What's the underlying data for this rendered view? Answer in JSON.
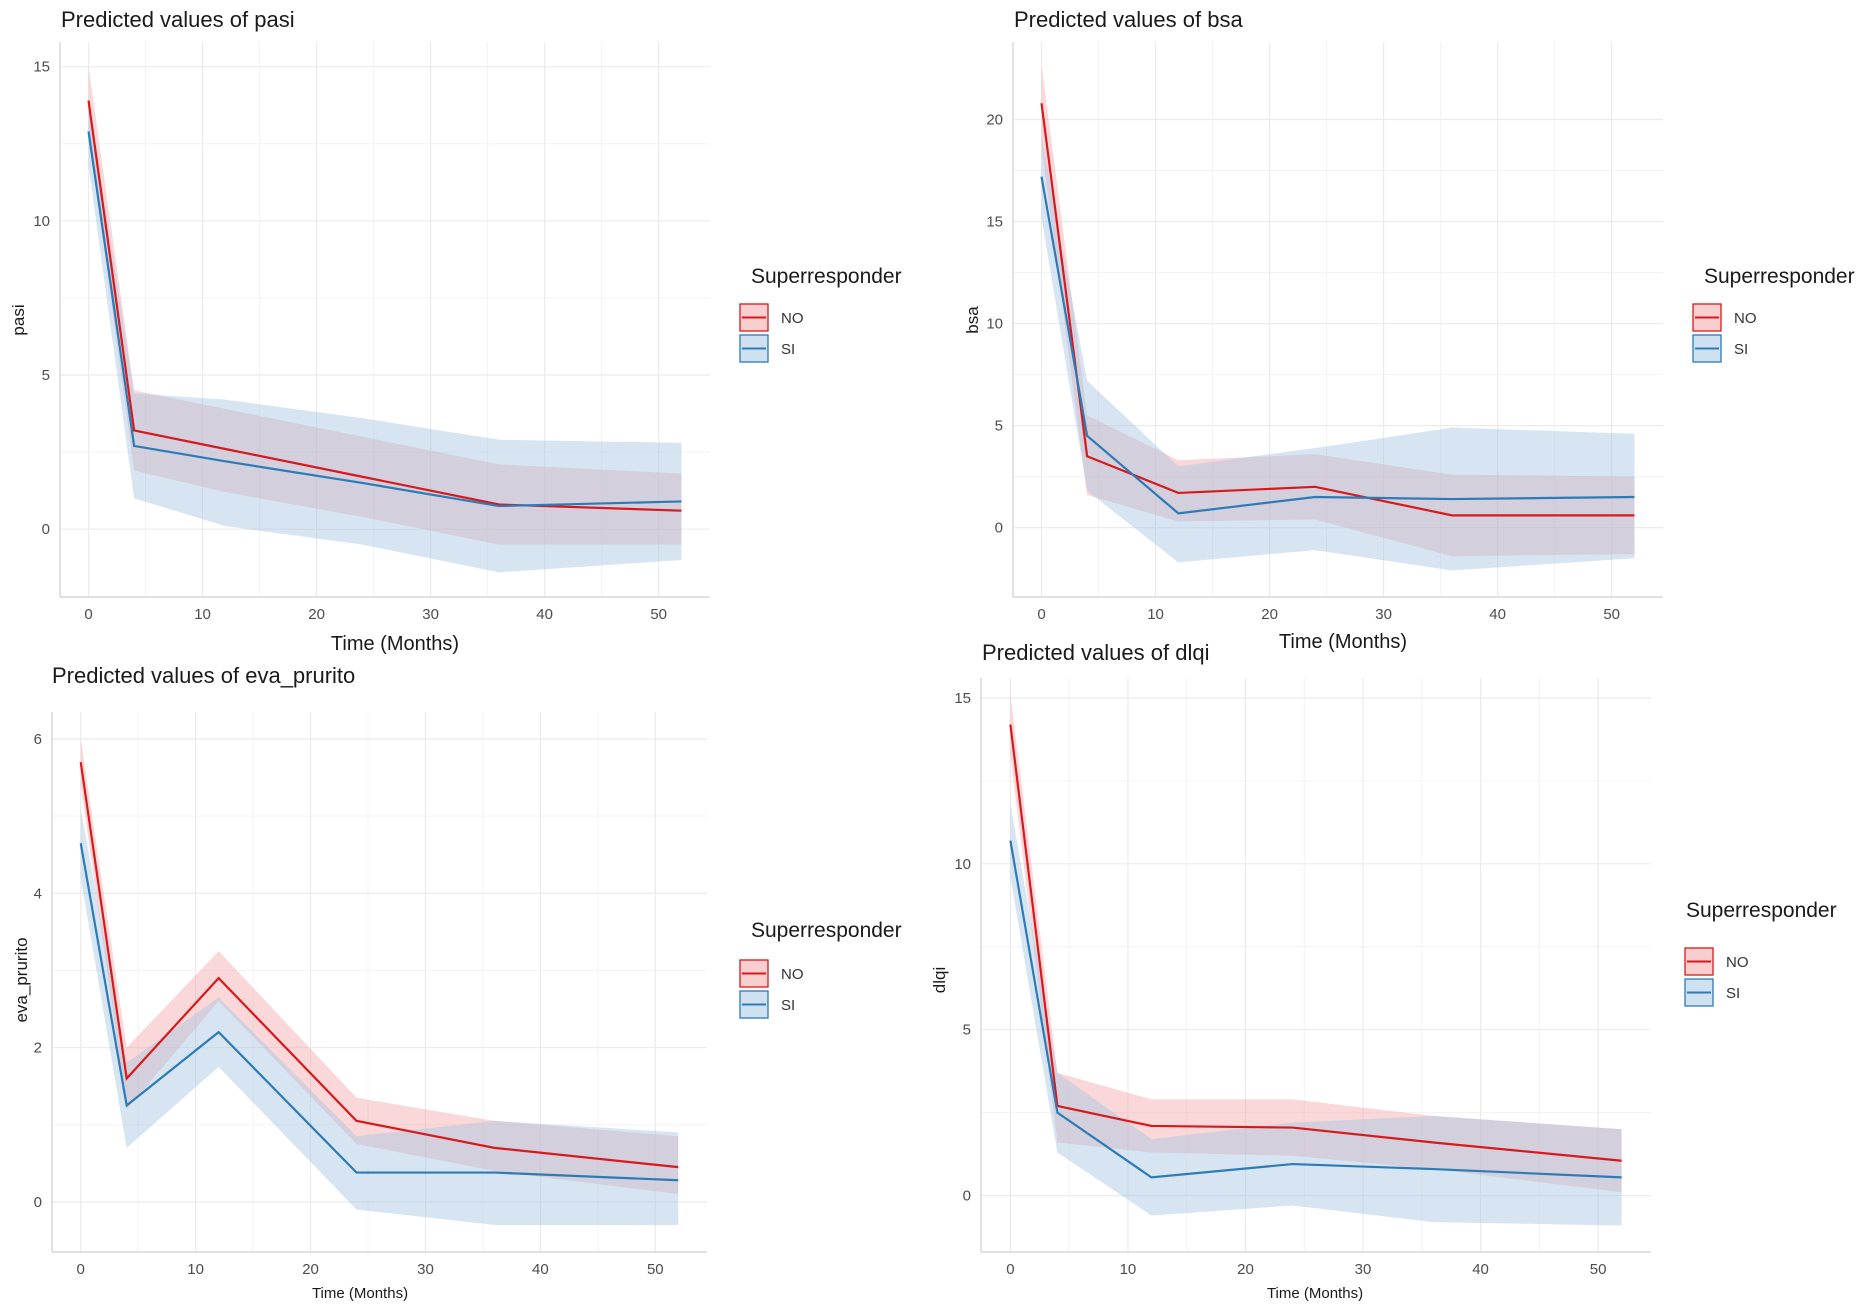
{
  "colors": {
    "NO": "#d7191c",
    "SI": "#2c7bb6",
    "NO_band": "#f4a6a8",
    "SI_band": "#a7c6e3",
    "grid": "#ebebeb"
  },
  "legend": {
    "title": "Superresponder",
    "entries": [
      "NO",
      "SI"
    ]
  },
  "chart_data": [
    {
      "type": "line",
      "title": "Predicted values of pasi",
      "xlabel": "Time (Months)",
      "ylabel": "pasi",
      "xlim": [
        -2.5,
        54.5
      ],
      "ylim": [
        -2.2,
        15.8
      ],
      "xticks": [
        0,
        10,
        20,
        30,
        40,
        50
      ],
      "yticks": [
        0,
        5,
        10,
        15
      ],
      "x": [
        0,
        4,
        12,
        24,
        36,
        52
      ],
      "series": [
        {
          "name": "NO",
          "values": [
            13.9,
            3.2,
            2.6,
            1.7,
            0.8,
            0.6
          ],
          "lower": [
            12.8,
            1.9,
            1.2,
            0.4,
            -0.5,
            -0.5
          ],
          "upper": [
            15.0,
            4.5,
            3.9,
            3.0,
            2.1,
            1.8
          ]
        },
        {
          "name": "SI",
          "values": [
            12.9,
            2.7,
            2.2,
            1.5,
            0.75,
            0.9
          ],
          "lower": [
            11.8,
            1.0,
            0.1,
            -0.5,
            -1.4,
            -1.0
          ],
          "upper": [
            14.0,
            4.4,
            4.2,
            3.6,
            2.9,
            2.8
          ]
        }
      ]
    },
    {
      "type": "line",
      "title": "Predicted values of bsa",
      "xlabel": "Time (Months)",
      "ylabel": "bsa",
      "xlim": [
        -2.5,
        54.5
      ],
      "ylim": [
        -3.4,
        23.8
      ],
      "xticks": [
        0,
        10,
        20,
        30,
        40,
        50
      ],
      "yticks": [
        0,
        5,
        10,
        15,
        20
      ],
      "x": [
        0,
        4,
        12,
        24,
        36,
        52
      ],
      "series": [
        {
          "name": "NO",
          "values": [
            20.8,
            3.5,
            1.7,
            2.0,
            0.6,
            0.6
          ],
          "lower": [
            18.7,
            1.6,
            0.3,
            0.4,
            -1.4,
            -1.3
          ],
          "upper": [
            22.7,
            5.5,
            3.3,
            3.6,
            2.6,
            2.5
          ]
        },
        {
          "name": "SI",
          "values": [
            17.2,
            4.5,
            0.7,
            1.5,
            1.4,
            1.5
          ],
          "lower": [
            15.2,
            1.8,
            -1.7,
            -1.1,
            -2.1,
            -1.5
          ],
          "upper": [
            19.2,
            7.2,
            3.0,
            3.9,
            4.9,
            4.6
          ]
        }
      ]
    },
    {
      "type": "line",
      "title": "Predicted values of eva_prurito",
      "xlabel": "Time (Months)",
      "ylabel": "eva_prurito",
      "xlim": [
        -2.5,
        54.5
      ],
      "ylim": [
        -0.65,
        6.35
      ],
      "xticks": [
        0,
        10,
        20,
        30,
        40,
        50
      ],
      "yticks": [
        0,
        2,
        4,
        6
      ],
      "x": [
        0,
        4,
        12,
        24,
        36,
        52
      ],
      "series": [
        {
          "name": "NO",
          "values": [
            5.7,
            1.6,
            2.9,
            1.05,
            0.7,
            0.45
          ],
          "lower": [
            5.4,
            1.2,
            2.6,
            0.75,
            0.4,
            0.1
          ],
          "upper": [
            6.0,
            2.0,
            3.25,
            1.35,
            1.05,
            0.85
          ]
        },
        {
          "name": "SI",
          "values": [
            4.65,
            1.25,
            2.2,
            0.38,
            0.38,
            0.28
          ],
          "lower": [
            4.2,
            0.7,
            1.75,
            -0.1,
            -0.3,
            -0.3
          ],
          "upper": [
            5.1,
            1.8,
            2.65,
            0.85,
            1.05,
            0.9
          ]
        }
      ]
    },
    {
      "type": "line",
      "title": "Predicted values of dlqi",
      "xlabel": "Time (Months)",
      "ylabel": "dlqi",
      "xlim": [
        -2.5,
        54.5
      ],
      "ylim": [
        -1.7,
        15.6
      ],
      "xticks": [
        0,
        10,
        20,
        30,
        40,
        50
      ],
      "yticks": [
        0,
        5,
        10,
        15
      ],
      "x": [
        0,
        4,
        12,
        24,
        36,
        52
      ],
      "series": [
        {
          "name": "NO",
          "values": [
            14.2,
            2.7,
            2.1,
            2.05,
            1.6,
            1.05
          ],
          "lower": [
            13.3,
            1.6,
            1.3,
            1.2,
            0.8,
            0.1
          ],
          "upper": [
            15.1,
            3.7,
            2.9,
            2.9,
            2.4,
            2.0
          ]
        },
        {
          "name": "SI",
          "values": [
            10.7,
            2.5,
            0.55,
            0.95,
            0.8,
            0.55
          ],
          "lower": [
            9.6,
            1.3,
            -0.6,
            -0.3,
            -0.8,
            -0.9
          ],
          "upper": [
            11.8,
            3.7,
            1.7,
            2.2,
            2.4,
            2.0
          ]
        }
      ]
    }
  ]
}
